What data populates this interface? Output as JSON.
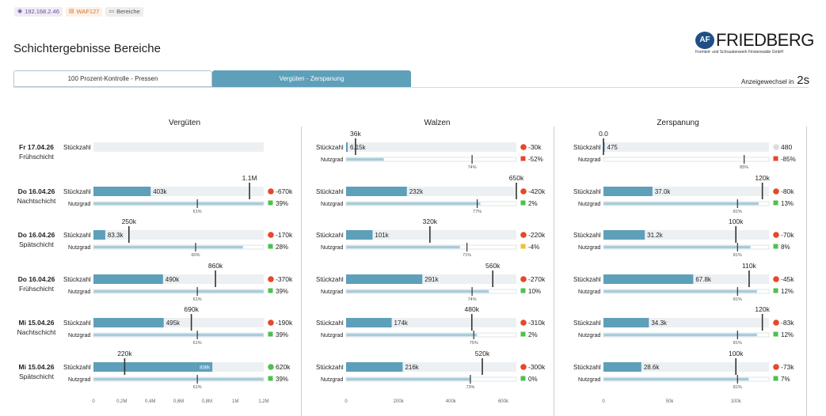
{
  "top_chips": {
    "ip": "192.168.2.46",
    "waf": "WAF127",
    "bereiche": "Bereiche"
  },
  "page_title": "Schichtergebnisse Bereiche",
  "logo": {
    "mark": "AF",
    "name": "FRIEDBERG",
    "subtitle": "Formteil- und Schraubenwerk Finsterwalde GmbH"
  },
  "tabs": [
    {
      "label": "100 Prozent-Kontrolle - Pressen",
      "active": false
    },
    {
      "label": "Vergüten - Zerspanung",
      "active": true
    }
  ],
  "refresh": {
    "label": "Anzeigewechsel in",
    "value": "2s"
  },
  "labels": {
    "stueckzahl": "Stückzahl",
    "nutzgrad": "Nutzgrad"
  },
  "colors": {
    "bar": "#5e9fba",
    "track": "#edf0f2",
    "util_bar": "#a9cbdb",
    "red": "#e5482a",
    "green": "#4ec04e",
    "yellow": "#f0c02e",
    "grey_dot": "#dddddd"
  },
  "rows": [
    {
      "date": "Fr 17.04.26",
      "shift": "Frühschicht"
    },
    {
      "date": "Do 16.04.26",
      "shift": "Nachtschicht"
    },
    {
      "date": "Do 16.04.26",
      "shift": "Spätschicht"
    },
    {
      "date": "Do 16.04.26",
      "shift": "Frühschicht"
    },
    {
      "date": "Mi 15.04.26",
      "shift": "Nachtschicht"
    },
    {
      "date": "Mi 15.04.26",
      "shift": "Spätschicht"
    }
  ],
  "chart_data": [
    {
      "title": "Vergüten",
      "type": "bar",
      "x_ticks": [
        "0",
        "0,2M",
        "0,4M",
        "0,6M",
        "0,8M",
        "1M",
        "1,2M"
      ],
      "x_max": 1200000,
      "rows": [
        {
          "value": null,
          "value_label": "",
          "target": null,
          "target_label": "",
          "delta": "",
          "delta_color": "none",
          "util_label": "",
          "util_target": null,
          "util_fill": null,
          "util_delta": "",
          "util_color": "none"
        },
        {
          "value": 403000,
          "value_label": "403k",
          "target": 1100000,
          "target_label": "1.1M",
          "delta": "-670k",
          "delta_color": "red",
          "util_label": "61%",
          "util_target": 0.61,
          "util_fill": 1.0,
          "util_delta": "39%",
          "util_color": "green"
        },
        {
          "value": 83300,
          "value_label": "83.3k",
          "target": 250000,
          "target_label": "250k",
          "delta": "-170k",
          "delta_color": "red",
          "util_label": "60%",
          "util_target": 0.6,
          "util_fill": 0.88,
          "util_delta": "28%",
          "util_color": "green"
        },
        {
          "value": 490000,
          "value_label": "490k",
          "target": 860000,
          "target_label": "860k",
          "delta": "-370k",
          "delta_color": "red",
          "util_label": "61%",
          "util_target": 0.61,
          "util_fill": 1.0,
          "util_delta": "39%",
          "util_color": "green"
        },
        {
          "value": 495000,
          "value_label": "495k",
          "target": 690000,
          "target_label": "690k",
          "delta": "-190k",
          "delta_color": "red",
          "util_label": "61%",
          "util_target": 0.61,
          "util_fill": 1.0,
          "util_delta": "39%",
          "util_color": "green"
        },
        {
          "value": 838000,
          "value_label": "838k",
          "target": 220000,
          "target_label": "220k",
          "delta": "620k",
          "delta_color": "green",
          "util_label": "61%",
          "util_target": 0.61,
          "util_fill": 1.0,
          "util_delta": "39%",
          "util_color": "green"
        }
      ]
    },
    {
      "title": "Walzen",
      "type": "bar",
      "x_ticks": [
        "0",
        "200k",
        "400k",
        "600k"
      ],
      "x_max": 650000,
      "rows": [
        {
          "value": 6150,
          "value_label": "6.15k",
          "target": 36000,
          "target_label": "36k",
          "delta": "-30k",
          "delta_color": "red",
          "util_label": "74%",
          "util_target": 0.74,
          "util_fill": 0.22,
          "util_delta": "-52%",
          "util_color": "red"
        },
        {
          "value": 232000,
          "value_label": "232k",
          "target": 650000,
          "target_label": "650k",
          "delta": "-420k",
          "delta_color": "red",
          "util_label": "77%",
          "util_target": 0.77,
          "util_fill": 0.79,
          "util_delta": "2%",
          "util_color": "green"
        },
        {
          "value": 101000,
          "value_label": "101k",
          "target": 320000,
          "target_label": "320k",
          "delta": "-220k",
          "delta_color": "red",
          "util_label": "71%",
          "util_target": 0.71,
          "util_fill": 0.67,
          "util_delta": "-4%",
          "util_color": "yellow"
        },
        {
          "value": 291000,
          "value_label": "291k",
          "target": 560000,
          "target_label": "560k",
          "delta": "-270k",
          "delta_color": "red",
          "util_label": "74%",
          "util_target": 0.74,
          "util_fill": 0.84,
          "util_delta": "10%",
          "util_color": "green"
        },
        {
          "value": 174000,
          "value_label": "174k",
          "target": 480000,
          "target_label": "480k",
          "delta": "-310k",
          "delta_color": "red",
          "util_label": "75%",
          "util_target": 0.75,
          "util_fill": 0.77,
          "util_delta": "2%",
          "util_color": "green"
        },
        {
          "value": 216000,
          "value_label": "216k",
          "target": 520000,
          "target_label": "520k",
          "delta": "-300k",
          "delta_color": "red",
          "util_label": "73%",
          "util_target": 0.73,
          "util_fill": 0.73,
          "util_delta": "0%",
          "util_color": "green"
        }
      ]
    },
    {
      "title": "Zerspanung",
      "type": "bar",
      "x_ticks": [
        "0",
        "50k",
        "100k"
      ],
      "x_max": 125000,
      "rows": [
        {
          "value": 475,
          "value_label": "475",
          "target": 0,
          "target_label": "0.0",
          "delta": "480",
          "delta_color": "grey",
          "util_label": "85%",
          "util_target": 0.85,
          "util_fill": 0.0,
          "util_delta": "-85%",
          "util_color": "red"
        },
        {
          "value": 37000,
          "value_label": "37.0k",
          "target": 120000,
          "target_label": "120k",
          "delta": "-80k",
          "delta_color": "red",
          "util_label": "81%",
          "util_target": 0.81,
          "util_fill": 0.94,
          "util_delta": "13%",
          "util_color": "green"
        },
        {
          "value": 31200,
          "value_label": "31.2k",
          "target": 100000,
          "target_label": "100k",
          "delta": "-70k",
          "delta_color": "red",
          "util_label": "81%",
          "util_target": 0.81,
          "util_fill": 0.89,
          "util_delta": "8%",
          "util_color": "green"
        },
        {
          "value": 67800,
          "value_label": "67.8k",
          "target": 110000,
          "target_label": "110k",
          "delta": "-45k",
          "delta_color": "red",
          "util_label": "81%",
          "util_target": 0.81,
          "util_fill": 0.93,
          "util_delta": "12%",
          "util_color": "green"
        },
        {
          "value": 34300,
          "value_label": "34.3k",
          "target": 120000,
          "target_label": "120k",
          "delta": "-83k",
          "delta_color": "red",
          "util_label": "81%",
          "util_target": 0.81,
          "util_fill": 0.93,
          "util_delta": "12%",
          "util_color": "green"
        },
        {
          "value": 28600,
          "value_label": "28.6k",
          "target": 100000,
          "target_label": "100k",
          "delta": "-73k",
          "delta_color": "red",
          "util_label": "81%",
          "util_target": 0.81,
          "util_fill": 0.88,
          "util_delta": "7%",
          "util_color": "green"
        }
      ]
    }
  ]
}
